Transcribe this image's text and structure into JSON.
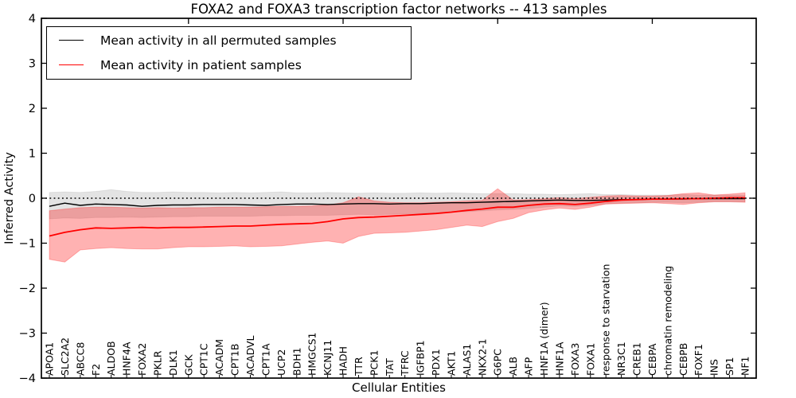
{
  "title": "FOXA2 and FOXA3 transcription factor networks -- 413 samples",
  "legend": {
    "entries": [
      {
        "label": "Mean activity in all permuted samples",
        "color": "#000000"
      },
      {
        "label": "Mean activity in patient samples",
        "color": "#ff0000"
      }
    ]
  },
  "chart_data": {
    "type": "line",
    "title": "FOXA2 and FOXA3 transcription factor networks -- 413 samples",
    "xlabel": "Cellular Entities",
    "ylabel": "Inferred Activity",
    "ylim": [
      -4,
      4
    ],
    "grid": false,
    "legend_position": "upper left",
    "y_ticks": [
      {
        "value": 4,
        "label": "4"
      },
      {
        "value": 3,
        "label": "3"
      },
      {
        "value": 2,
        "label": "2"
      },
      {
        "value": 1,
        "label": "1"
      },
      {
        "value": 0,
        "label": "0"
      },
      {
        "value": -1,
        "label": "−1"
      },
      {
        "value": -2,
        "label": "−2"
      },
      {
        "value": -3,
        "label": "−3"
      },
      {
        "value": -4,
        "label": "−4"
      }
    ],
    "x_major_tick_indices": [
      9,
      19,
      29,
      39
    ],
    "zero_line": {
      "y": 0,
      "style": "dotted",
      "color": "#000000"
    },
    "categories": [
      "APOA1",
      "SLC2A2",
      "ABCC8",
      "F2",
      "ALDOB",
      "HNF4A",
      "FOXA2",
      "PKLR",
      "DLK1",
      "GCK",
      "CPT1C",
      "ACADM",
      "CPT1B",
      "ACADVL",
      "CPT1A",
      "UCP2",
      "BDH1",
      "HMGCS1",
      "KCNJ11",
      "HADH",
      "TTR",
      "PCK1",
      "TAT",
      "TFRC",
      "IGFBP1",
      "PDX1",
      "AKT1",
      "ALAS1",
      "NKX2-1",
      "G6PC",
      "ALB",
      "AFP",
      "HNF1A (dimer)",
      "HNF1A",
      "FOXA3",
      "FOXA1",
      "response to starvation",
      "NR3C1",
      "CREB1",
      "CEBPA",
      "chromatin remodeling",
      "CEBPB",
      "FOXF1",
      "INS",
      "SP1",
      "NF1"
    ],
    "series": [
      {
        "name": "permuted-mean",
        "label": "Mean activity in all permuted samples",
        "color": "#000000",
        "width": 1.4,
        "values": [
          -0.18,
          -0.11,
          -0.16,
          -0.13,
          -0.14,
          -0.15,
          -0.18,
          -0.16,
          -0.15,
          -0.15,
          -0.14,
          -0.14,
          -0.14,
          -0.15,
          -0.16,
          -0.14,
          -0.13,
          -0.13,
          -0.14,
          -0.13,
          -0.12,
          -0.12,
          -0.13,
          -0.12,
          -0.12,
          -0.11,
          -0.1,
          -0.1,
          -0.09,
          -0.08,
          -0.07,
          -0.06,
          -0.05,
          -0.04,
          -0.05,
          -0.05,
          -0.04,
          -0.03,
          -0.03,
          -0.02,
          -0.02,
          -0.02,
          -0.01,
          -0.01,
          -0.01,
          -0.01
        ]
      },
      {
        "name": "patient-mean",
        "label": "Mean activity in patient samples",
        "color": "#ff0000",
        "width": 1.8,
        "values": [
          -0.84,
          -0.76,
          -0.7,
          -0.66,
          -0.67,
          -0.66,
          -0.65,
          -0.66,
          -0.65,
          -0.65,
          -0.64,
          -0.63,
          -0.62,
          -0.62,
          -0.6,
          -0.58,
          -0.57,
          -0.56,
          -0.52,
          -0.46,
          -0.43,
          -0.42,
          -0.4,
          -0.38,
          -0.36,
          -0.34,
          -0.31,
          -0.27,
          -0.24,
          -0.2,
          -0.2,
          -0.16,
          -0.13,
          -0.12,
          -0.14,
          -0.11,
          -0.07,
          -0.04,
          -0.03,
          -0.02,
          -0.02,
          -0.01,
          -0.01,
          0.0,
          0.01,
          0.01
        ]
      }
    ],
    "bands": [
      {
        "name": "permuted-range",
        "color": "rgba(0,0,0,0.11)",
        "edge": "rgba(0,0,0,0.08)",
        "upper": [
          0.13,
          0.14,
          0.13,
          0.15,
          0.19,
          0.15,
          0.13,
          0.13,
          0.14,
          0.13,
          0.13,
          0.12,
          0.13,
          0.12,
          0.13,
          0.14,
          0.12,
          0.12,
          0.13,
          0.12,
          0.11,
          0.12,
          0.11,
          0.11,
          0.12,
          0.11,
          0.12,
          0.11,
          0.1,
          0.1,
          0.1,
          0.09,
          0.09,
          0.08,
          0.09,
          0.1,
          0.08,
          0.08,
          0.07,
          0.07,
          0.07,
          0.08,
          0.07,
          0.07,
          0.07,
          0.07
        ],
        "lower": [
          -0.46,
          -0.44,
          -0.45,
          -0.43,
          -0.43,
          -0.42,
          -0.43,
          -0.42,
          -0.41,
          -0.41,
          -0.4,
          -0.4,
          -0.4,
          -0.4,
          -0.39,
          -0.39,
          -0.38,
          -0.38,
          -0.38,
          -0.37,
          -0.36,
          -0.37,
          -0.36,
          -0.35,
          -0.34,
          -0.33,
          -0.31,
          -0.3,
          -0.28,
          -0.26,
          -0.25,
          -0.23,
          -0.2,
          -0.17,
          -0.18,
          -0.16,
          -0.13,
          -0.11,
          -0.1,
          -0.09,
          -0.09,
          -0.1,
          -0.09,
          -0.08,
          -0.08,
          -0.08
        ]
      },
      {
        "name": "patient-range",
        "color": "rgba(255,0,0,0.30)",
        "edge": "rgba(255,0,0,0.25)",
        "upper": [
          -0.28,
          -0.24,
          -0.21,
          -0.2,
          -0.2,
          -0.21,
          -0.22,
          -0.21,
          -0.22,
          -0.21,
          -0.21,
          -0.2,
          -0.2,
          -0.2,
          -0.19,
          -0.18,
          -0.18,
          -0.17,
          -0.15,
          -0.1,
          0.03,
          -0.06,
          -0.09,
          -0.1,
          -0.1,
          -0.09,
          -0.08,
          -0.06,
          -0.05,
          0.21,
          -0.04,
          -0.03,
          -0.01,
          0.01,
          -0.01,
          0.02,
          0.05,
          0.06,
          0.05,
          0.05,
          0.06,
          0.1,
          0.12,
          0.07,
          0.09,
          0.12
        ],
        "lower": [
          -1.36,
          -1.42,
          -1.15,
          -1.12,
          -1.1,
          -1.12,
          -1.13,
          -1.13,
          -1.1,
          -1.08,
          -1.08,
          -1.07,
          -1.06,
          -1.08,
          -1.07,
          -1.06,
          -1.02,
          -0.98,
          -0.95,
          -1.0,
          -0.85,
          -0.78,
          -0.77,
          -0.76,
          -0.73,
          -0.7,
          -0.65,
          -0.6,
          -0.63,
          -0.52,
          -0.45,
          -0.32,
          -0.26,
          -0.22,
          -0.25,
          -0.2,
          -0.13,
          -0.12,
          -0.11,
          -0.1,
          -0.12,
          -0.14,
          -0.1,
          -0.08,
          -0.08,
          -0.09
        ]
      }
    ]
  }
}
